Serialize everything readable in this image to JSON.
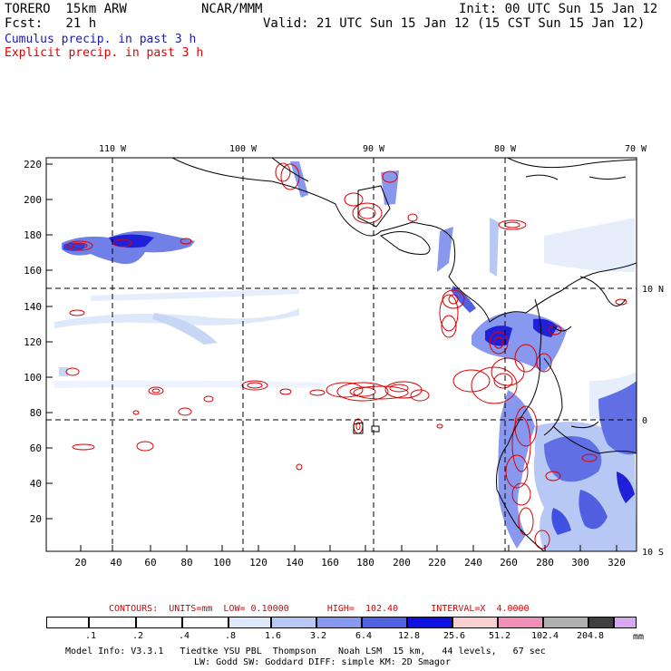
{
  "header": {
    "model": "TORERO  15km ARW",
    "center": "NCAR/MMM",
    "init": "Init: 00 UTC Sun 15 Jan 12",
    "fcst": "Fcst:   21 h",
    "valid": "Valid: 21 UTC Sun 15 Jan 12 (15 CST Sun 15 Jan 12)",
    "cumulus_label": "Cumulus precip. in past 3 h",
    "explicit_label": "Explicit precip. in past 3 h",
    "cumulus_color": "#1a1aa8",
    "explicit_color": "#dd0000"
  },
  "map": {
    "lon_labels": [
      "110 W",
      "100 W",
      "90 W",
      "80 W",
      "70 W"
    ],
    "lat_labels": [
      "10 N",
      "0",
      "10 S"
    ],
    "x_ticks": [
      "20",
      "40",
      "60",
      "80",
      "100",
      "120",
      "140",
      "160",
      "180",
      "200",
      "220",
      "240",
      "260",
      "280",
      "300",
      "320"
    ],
    "y_ticks": [
      "220",
      "200",
      "180",
      "160",
      "140",
      "120",
      "100",
      "80",
      "60",
      "40",
      "20"
    ]
  },
  "contours": {
    "label": "CONTOURS:  UNITS=mm  LOW= 0.10000       HIGH=  102.40      INTERVAL=X  4.0000"
  },
  "colorbar": {
    "labels": [
      ".1",
      ".2",
      ".4",
      ".8",
      "1.6",
      "3.2",
      "6.4",
      "12.8",
      "25.6",
      "51.2",
      "102.4",
      "204.8"
    ],
    "units": "mm",
    "colors": [
      "#ffffff",
      "#ffffff",
      "#ffffff",
      "#ffffff",
      "#dde8fa",
      "#b8c8f5",
      "#8898ee",
      "#5060e0",
      "#1010e0",
      "#f8d0d0",
      "#f090b8",
      "#b0b0b0",
      "#404040",
      "#d8a8f0"
    ]
  },
  "footer": {
    "line1": "Model Info: V3.3.1   Tiedtke YSU PBL  Thompson    Noah LSM  15 km,   44 levels,   67 sec",
    "line2": "LW: Godd SW: Goddard DIFF: simple KM: 2D Smagor"
  }
}
